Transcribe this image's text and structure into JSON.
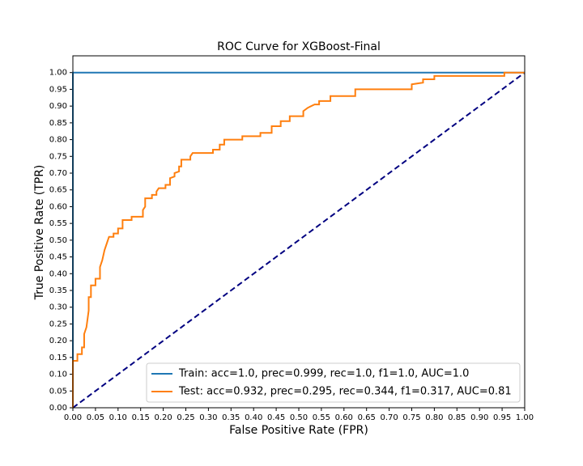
{
  "chart_data": {
    "type": "line",
    "title": "ROC Curve for XGBoost-Final",
    "xlabel": "False Positive Rate (FPR)",
    "ylabel": "True Positive Rate (TPR)",
    "xlim": [
      0,
      1
    ],
    "ylim": [
      0,
      1.05
    ],
    "xticks": [
      {
        "value": 0,
        "label": "0.00"
      },
      {
        "value": 0.05,
        "label": "0.05"
      },
      {
        "value": 0.1,
        "label": "0.10"
      },
      {
        "value": 0.15,
        "label": "0.15"
      },
      {
        "value": 0.2,
        "label": "0.20"
      },
      {
        "value": 0.25,
        "label": "0.25"
      },
      {
        "value": 0.3,
        "label": "0.30"
      },
      {
        "value": 0.35,
        "label": "0.35"
      },
      {
        "value": 0.4,
        "label": "0.40"
      },
      {
        "value": 0.45,
        "label": "0.45"
      },
      {
        "value": 0.5,
        "label": "0.50"
      },
      {
        "value": 0.55,
        "label": "0.55"
      },
      {
        "value": 0.6,
        "label": "0.60"
      },
      {
        "value": 0.65,
        "label": "0.65"
      },
      {
        "value": 0.7,
        "label": "0.70"
      },
      {
        "value": 0.75,
        "label": "0.75"
      },
      {
        "value": 0.8,
        "label": "0.80"
      },
      {
        "value": 0.85,
        "label": "0.85"
      },
      {
        "value": 0.9,
        "label": "0.90"
      },
      {
        "value": 0.95,
        "label": "0.95"
      },
      {
        "value": 1,
        "label": "1.00"
      }
    ],
    "yticks": [
      {
        "value": 0,
        "label": "0.00"
      },
      {
        "value": 0.05,
        "label": "0.05"
      },
      {
        "value": 0.1,
        "label": "0.10"
      },
      {
        "value": 0.15,
        "label": "0.15"
      },
      {
        "value": 0.2,
        "label": "0.20"
      },
      {
        "value": 0.25,
        "label": "0.25"
      },
      {
        "value": 0.3,
        "label": "0.30"
      },
      {
        "value": 0.35,
        "label": "0.35"
      },
      {
        "value": 0.4,
        "label": "0.40"
      },
      {
        "value": 0.45,
        "label": "0.45"
      },
      {
        "value": 0.5,
        "label": "0.50"
      },
      {
        "value": 0.55,
        "label": "0.55"
      },
      {
        "value": 0.6,
        "label": "0.60"
      },
      {
        "value": 0.65,
        "label": "0.65"
      },
      {
        "value": 0.7,
        "label": "0.70"
      },
      {
        "value": 0.75,
        "label": "0.75"
      },
      {
        "value": 0.8,
        "label": "0.80"
      },
      {
        "value": 0.85,
        "label": "0.85"
      },
      {
        "value": 0.9,
        "label": "0.90"
      },
      {
        "value": 0.95,
        "label": "0.95"
      },
      {
        "value": 1,
        "label": "1.00"
      }
    ],
    "legend": "lower right",
    "series": [
      {
        "name": "Train: acc=1.0, prec=0.999, rec=1.0, f1=1.0, AUC=1.0",
        "color": "#1f77b4",
        "x": [
          0,
          0,
          1
        ],
        "values": [
          0,
          1,
          1
        ]
      },
      {
        "name": "Test: acc=0.932, prec=0.295, rec=0.344, f1=0.317, AUC=0.81",
        "color": "#ff7f0e",
        "x": [
          0,
          0,
          0.01,
          0.01,
          0.02,
          0.02,
          0.025,
          0.025,
          0.03,
          0.035,
          0.035,
          0.04,
          0.04,
          0.05,
          0.05,
          0.06,
          0.06,
          0.065,
          0.07,
          0.075,
          0.08,
          0.09,
          0.09,
          0.1,
          0.1,
          0.11,
          0.11,
          0.13,
          0.13,
          0.155,
          0.155,
          0.16,
          0.16,
          0.175,
          0.175,
          0.185,
          0.185,
          0.19,
          0.205,
          0.205,
          0.215,
          0.215,
          0.225,
          0.225,
          0.235,
          0.235,
          0.24,
          0.24,
          0.26,
          0.26,
          0.265,
          0.31,
          0.31,
          0.325,
          0.325,
          0.335,
          0.335,
          0.375,
          0.375,
          0.415,
          0.415,
          0.44,
          0.44,
          0.46,
          0.46,
          0.48,
          0.48,
          0.51,
          0.51,
          0.52,
          0.535,
          0.545,
          0.545,
          0.57,
          0.57,
          0.625,
          0.625,
          0.75,
          0.75,
          0.775,
          0.775,
          0.8,
          0.8,
          0.955,
          0.955,
          1
        ],
        "values": [
          0,
          0.14,
          0.14,
          0.16,
          0.16,
          0.18,
          0.18,
          0.22,
          0.24,
          0.29,
          0.33,
          0.33,
          0.365,
          0.365,
          0.385,
          0.385,
          0.42,
          0.44,
          0.47,
          0.49,
          0.51,
          0.51,
          0.52,
          0.52,
          0.535,
          0.535,
          0.56,
          0.56,
          0.57,
          0.57,
          0.59,
          0.6,
          0.625,
          0.625,
          0.635,
          0.635,
          0.645,
          0.655,
          0.655,
          0.665,
          0.665,
          0.685,
          0.69,
          0.7,
          0.705,
          0.72,
          0.72,
          0.74,
          0.74,
          0.75,
          0.76,
          0.76,
          0.77,
          0.77,
          0.785,
          0.785,
          0.8,
          0.8,
          0.81,
          0.81,
          0.82,
          0.82,
          0.84,
          0.84,
          0.855,
          0.855,
          0.87,
          0.87,
          0.885,
          0.895,
          0.905,
          0.905,
          0.915,
          0.915,
          0.93,
          0.93,
          0.95,
          0.95,
          0.965,
          0.97,
          0.98,
          0.98,
          0.99,
          0.99,
          1,
          1
        ]
      }
    ],
    "diagonal": {
      "color": "#000080",
      "x": [
        0,
        1
      ],
      "values": [
        0,
        1
      ]
    }
  }
}
